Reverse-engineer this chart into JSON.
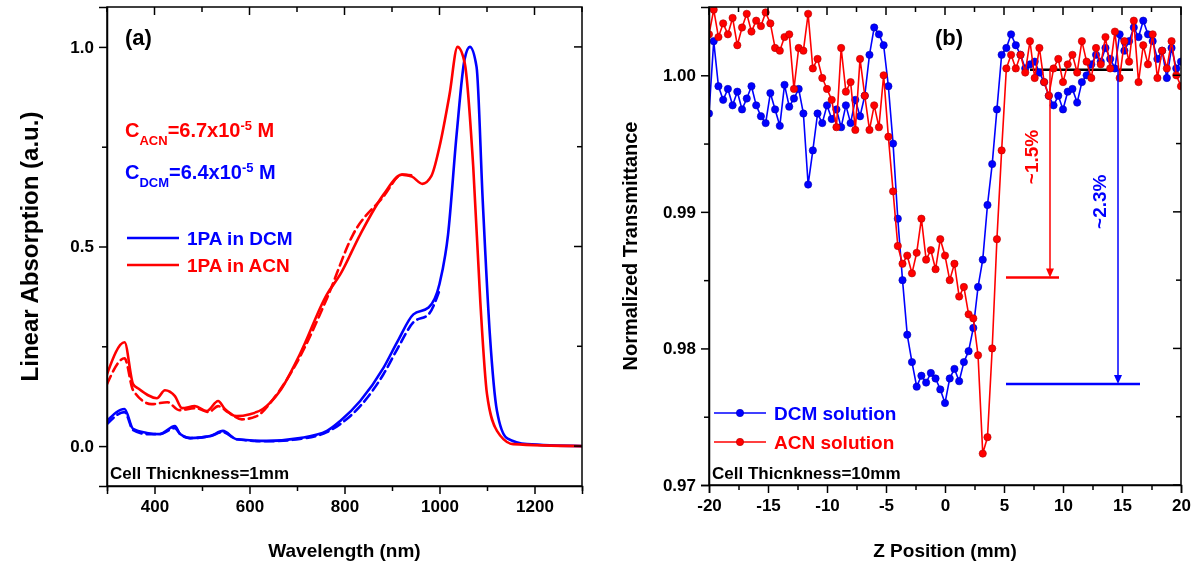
{
  "chart_data": [
    {
      "type": "line",
      "xlabel": "Wavelength (nm)",
      "ylabel": "Linear Absorption (a.u.)",
      "xlim": [
        300,
        1300
      ],
      "ylim": [
        -0.1,
        1.1
      ],
      "xticks": [
        {
          "value": 300,
          "label": null
        },
        400,
        {
          "value": 500,
          "label": null
        },
        600,
        {
          "value": 700,
          "label": null
        },
        800,
        {
          "value": 900,
          "label": null
        },
        1000,
        {
          "value": 1100,
          "label": null
        },
        1200,
        {
          "value": 1300,
          "label": null
        }
      ],
      "yticks": [
        {
          "value": 0,
          "label": "0.0"
        },
        {
          "value": 0.25,
          "label": null
        },
        {
          "value": 0.5,
          "label": "0.5"
        },
        {
          "value": 0.75,
          "label": null
        },
        {
          "value": 1,
          "label": "1.0"
        }
      ],
      "legend": "left",
      "line_style": "solid",
      "marker": "none",
      "annotations": [
        "(a)",
        "C$_{ACN}$=6.7x10$^{-5}$ M",
        "C$_{DCM}$=6.4x10$^{-5}$ M",
        "Cell Thicnkness=1mm"
      ],
      "series": [
        {
          "name": "1PA in DCM",
          "color": "#0000ff",
          "x": [
            300,
            337,
            355,
            384,
            411,
            443,
            454,
            475,
            517,
            544,
            573,
            636,
            706,
            763,
            791,
            833,
            882,
            912,
            945,
            977,
            1000,
            1018,
            1036,
            1053,
            1064,
            1078,
            1091,
            1106,
            1121,
            1142,
            1184,
            1300
          ],
          "values": [
            0.063,
            0.093,
            0.043,
            0.033,
            0.03,
            0.05,
            0.03,
            0.02,
            0.025,
            0.038,
            0.017,
            0.013,
            0.02,
            0.038,
            0.063,
            0.113,
            0.196,
            0.263,
            0.33,
            0.347,
            0.406,
            0.53,
            0.78,
            0.97,
            1.0,
            0.95,
            0.615,
            0.28,
            0.088,
            0.02,
            0.005,
            0
          ]
        },
        {
          "name": "1PA in ACN",
          "color": "#ff0000",
          "x": [
            300,
            337,
            355,
            365,
            405,
            422,
            443,
            458,
            485,
            510,
            534,
            548,
            573,
            601,
            628,
            664,
            706,
            763,
            791,
            833,
            882,
            921,
            942,
            964,
            983,
            1000,
            1021,
            1038,
            1053,
            1071,
            1086,
            1100,
            1121,
            1155,
            1300
          ],
          "values": [
            0.18,
            0.26,
            0.155,
            0.145,
            0.12,
            0.14,
            0.125,
            0.095,
            0.1,
            0.088,
            0.113,
            0.093,
            0.075,
            0.08,
            0.093,
            0.138,
            0.23,
            0.38,
            0.43,
            0.53,
            0.63,
            0.68,
            0.675,
            0.657,
            0.677,
            0.75,
            0.88,
            1.0,
            0.96,
            0.7,
            0.36,
            0.13,
            0.038,
            0.005,
            0
          ]
        },
        {
          "color": "#ff0000",
          "line_style": "dashed",
          "x": [
            300,
            337,
            355,
            394,
            427,
            452,
            487,
            514,
            534,
            555,
            584,
            615,
            650,
            700,
            763,
            818,
            882,
            921,
            942
          ],
          "values": [
            0.155,
            0.22,
            0.14,
            0.105,
            0.11,
            0.09,
            0.095,
            0.085,
            0.1,
            0.085,
            0.067,
            0.075,
            0.118,
            0.21,
            0.37,
            0.53,
            0.625,
            0.68,
            0.678
          ]
        },
        {
          "color": "#0000ff",
          "line_style": "dashed",
          "x": [
            300,
            337,
            355,
            384,
            411,
            443,
            454,
            475,
            517,
            544,
            573,
            636,
            706,
            763,
            791,
            833,
            882,
            912,
            945,
            977,
            1000
          ],
          "values": [
            0.055,
            0.085,
            0.04,
            0.03,
            0.03,
            0.045,
            0.03,
            0.02,
            0.025,
            0.035,
            0.017,
            0.012,
            0.018,
            0.035,
            0.055,
            0.1,
            0.18,
            0.245,
            0.31,
            0.33,
            0.39
          ]
        }
      ]
    },
    {
      "type": "line",
      "xlabel": "Z Position (mm)",
      "ylabel": "Normalized Transmittance",
      "xlim": [
        -20,
        20
      ],
      "ylim": [
        0.97,
        1.005
      ],
      "xticks": [
        -20,
        {
          "value": -17.5,
          "label": null
        },
        -15,
        {
          "value": -12.5,
          "label": null
        },
        -10,
        {
          "value": -7.5,
          "label": null
        },
        -5,
        {
          "value": -2.5,
          "label": null
        },
        0,
        {
          "value": 2.5,
          "label": null
        },
        5,
        {
          "value": 7.5,
          "label": null
        },
        10,
        {
          "value": 12.5,
          "label": null
        },
        15,
        {
          "value": 17.5,
          "label": null
        },
        20
      ],
      "yticks": [
        0.97,
        {
          "value": 0.975,
          "label": null
        },
        0.98,
        {
          "value": 0.985,
          "label": null
        },
        0.99,
        {
          "value": 0.995,
          "label": null
        },
        {
          "value": 1,
          "label": "1.00"
        }
      ],
      "legend": "bottom left",
      "line_style": "solid",
      "marker": "circle",
      "annotations": [
        "(b)",
        "Cell Thicnkness=10mm",
        "~1.5%",
        "~2.3%"
      ],
      "ref_lines": [
        {
          "axis": "y",
          "value": 1.0004,
          "color": "#000000"
        },
        {
          "axis": "y",
          "value": 0.9852,
          "color": "#ff0000"
        },
        {
          "axis": "y",
          "value": 0.9774,
          "color": "#0000ff"
        }
      ],
      "series": [
        {
          "name": "DCM solution",
          "color": "#0000ff",
          "x": [
            -20,
            -19.6,
            -19.2,
            -18.8,
            -18.4,
            -18,
            -17.6,
            -17.2,
            -16.8,
            -16.4,
            -16,
            -15.6,
            -15.2,
            -14.8,
            -14.4,
            -14,
            -13.6,
            -13.2,
            -12.8,
            -12.4,
            -12,
            -11.6,
            -11.2,
            -10.8,
            -10.4,
            -10,
            -9.6,
            -9.2,
            -8.8,
            -8.4,
            -8,
            -7.6,
            -7.2,
            -6.8,
            -6.4,
            -6,
            -5.6,
            -5.2,
            -4.8,
            -4.4,
            -4,
            -3.6,
            -3.2,
            -2.8,
            -2.4,
            -2,
            -1.6,
            -1.2,
            -0.8,
            -0.4,
            0,
            0.4,
            0.8,
            1.2,
            1.6,
            2,
            2.4,
            2.8,
            3.2,
            3.6,
            4,
            4.4,
            4.8,
            5.2,
            5.6,
            6,
            6.4,
            6.8,
            7.2,
            7.6,
            8,
            8.4,
            8.8,
            9.2,
            9.6,
            10,
            10.4,
            10.8,
            11.2,
            11.6,
            12,
            12.4,
            12.8,
            13.2,
            13.6,
            14,
            14.4,
            14.8,
            15.2,
            15.6,
            16,
            16.4,
            16.8,
            17.2,
            17.6,
            18,
            18.4,
            18.8,
            19.2,
            19.6,
            20
          ],
          "values": [
            0.9972,
            1.0025,
            0.9992,
            0.9982,
            0.999,
            0.9978,
            0.9988,
            0.9975,
            0.9983,
            0.9992,
            0.9978,
            0.997,
            0.9965,
            0.9987,
            0.9975,
            0.9963,
            0.9993,
            0.9977,
            0.9983,
            0.999,
            0.9972,
            0.992,
            0.9945,
            0.9972,
            0.9965,
            0.9978,
            0.9968,
            0.9975,
            0.9962,
            0.9978,
            0.9965,
            0.9982,
            0.997,
            0.9985,
            1.0015,
            1.0035,
            1.003,
            1.0022,
            0.9992,
            0.995,
            0.9895,
            0.985,
            0.981,
            0.979,
            0.9772,
            0.978,
            0.9775,
            0.9782,
            0.9778,
            0.977,
            0.976,
            0.9778,
            0.9785,
            0.9776,
            0.979,
            0.9798,
            0.9815,
            0.9845,
            0.9865,
            0.9905,
            0.9935,
            0.9975,
            1.0015,
            1.002,
            1.003,
            1.0022,
            1.0015,
            1.0005,
            1.0008,
            1.001,
            1.0002,
            0.9995,
            0.9985,
            0.9978,
            0.9985,
            0.9975,
            0.9988,
            0.999,
            0.998,
            0.9995,
            1.0,
            1.0008,
            1.0015,
            1.001,
            1.002,
            1.0012,
            1.0005,
            1.003,
            1.0018,
            1.0025,
            1.0035,
            1.0028,
            1.004,
            1.003,
            1.0025,
            1.0012,
            1.0018,
            0.9998,
            1.002,
            1.0005,
            1.001
          ]
        },
        {
          "name": "ACN solution",
          "color": "#ff0000",
          "x": [
            -20,
            -19.6,
            -19.2,
            -18.8,
            -18.4,
            -18,
            -17.6,
            -17.2,
            -16.8,
            -16.4,
            -16,
            -15.6,
            -15.2,
            -14.8,
            -14.4,
            -14,
            -13.6,
            -13.2,
            -12.8,
            -12.4,
            -12,
            -11.6,
            -11.2,
            -10.8,
            -10.4,
            -10,
            -9.6,
            -9.2,
            -8.8,
            -8.4,
            -8,
            -7.6,
            -7.2,
            -6.8,
            -6.4,
            -6,
            -5.6,
            -5.2,
            -4.8,
            -4.4,
            -4,
            -3.6,
            -3.2,
            -2.8,
            -2.4,
            -2,
            -1.6,
            -1.2,
            -0.8,
            -0.4,
            0,
            0.4,
            0.8,
            1.2,
            1.6,
            2,
            2.4,
            2.8,
            3.2,
            3.6,
            4,
            4.4,
            4.8,
            5.2,
            5.6,
            6,
            6.4,
            6.8,
            7.2,
            7.6,
            8,
            8.4,
            8.8,
            9.2,
            9.6,
            10,
            10.4,
            10.8,
            11.2,
            11.6,
            12,
            12.4,
            12.8,
            13.2,
            13.6,
            14,
            14.4,
            14.8,
            15.2,
            15.6,
            16,
            16.4,
            16.8,
            17.2,
            17.6,
            18,
            18.4,
            18.8,
            19.2,
            19.6,
            20
          ],
          "values": [
            1.003,
            1.0048,
            1.0028,
            1.0038,
            1.003,
            1.0042,
            1.0022,
            1.0035,
            1.0045,
            1.0032,
            1.004,
            1.0036,
            1.0046,
            1.0038,
            1.002,
            1.0018,
            1.0028,
            1.003,
            0.999,
            1.002,
            1.0018,
            1.0045,
            1.0005,
            1.0012,
            0.9998,
            0.999,
            0.9982,
            0.9962,
            1.002,
            0.9988,
            0.9995,
            0.996,
            1.0012,
            0.9985,
            0.996,
            0.9978,
            0.9962,
            1.0,
            0.9955,
            0.9915,
            0.9875,
            0.9862,
            0.9868,
            0.9855,
            0.987,
            0.9895,
            0.9865,
            0.9872,
            0.9858,
            0.988,
            0.9868,
            0.985,
            0.9862,
            0.9838,
            0.9845,
            0.9825,
            0.9822,
            0.9795,
            0.9723,
            0.9735,
            0.98,
            0.988,
            0.9945,
            1.0005,
            1.0015,
            1.0005,
            1.0015,
            1.0002,
            1.0025,
            0.9998,
            1.002,
            0.9995,
            0.9985,
            1.0005,
            1.0012,
            0.9995,
            1.0008,
            1.0015,
            1.0002,
            1.0025,
            1.001,
            0.9998,
            1.002,
            1.0008,
            1.0028,
            1.0005,
            1.0032,
            0.9998,
            1.0025,
            1.001,
            1.004,
            0.9995,
            1.0022,
            1.0008,
            1.003,
            0.9998,
            1.0018,
            1.0005,
            1.0025,
            1.0,
            0.9992
          ]
        }
      ]
    }
  ]
}
